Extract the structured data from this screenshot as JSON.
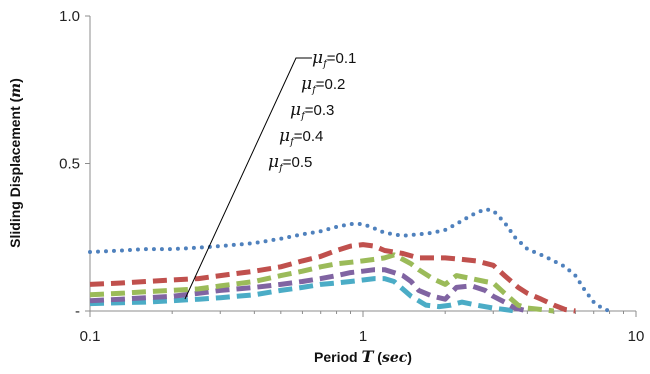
{
  "chart_data": {
    "type": "line",
    "title": "",
    "xlabel_prefix": "Period ",
    "xlabel_var": "T",
    "xlabel_unit_open": " (",
    "xlabel_unit": "sec",
    "xlabel_unit_close": ")",
    "ylabel_prefix": "Sliding Displacement (",
    "ylabel_var": "m",
    "ylabel_suffix": ")",
    "x_scale": "log",
    "xlim": [
      0.1,
      10
    ],
    "ylim": [
      0,
      1.0
    ],
    "x_ticks": [
      {
        "value": 0.1,
        "label": "0.1"
      },
      {
        "value": 1,
        "label": "1"
      },
      {
        "value": 10,
        "label": "10"
      }
    ],
    "y_ticks": [
      {
        "value": 0,
        "label": "-"
      },
      {
        "value": 0.5,
        "label": "0.5"
      },
      {
        "value": 1.0,
        "label": "1.0"
      }
    ],
    "grid": false,
    "legend_placement": "top-center",
    "legend_symbol": "μ",
    "legend_subscript": "f",
    "series": [
      {
        "name": "=0.1",
        "color": "#4f81bd",
        "style": "dotted",
        "x": [
          0.1,
          0.13,
          0.16,
          0.2,
          0.25,
          0.3,
          0.4,
          0.5,
          0.6,
          0.7,
          0.8,
          0.9,
          1.0,
          1.1,
          1.2,
          1.4,
          1.6,
          1.8,
          2.0,
          2.2,
          2.5,
          2.8,
          3.0,
          3.3,
          3.6,
          4.0,
          4.5,
          5.0,
          5.5,
          6.0,
          6.5,
          7.0,
          7.5,
          8.0
        ],
        "y": [
          0.2,
          0.205,
          0.21,
          0.21,
          0.215,
          0.22,
          0.23,
          0.245,
          0.26,
          0.27,
          0.285,
          0.295,
          0.295,
          0.28,
          0.265,
          0.255,
          0.26,
          0.265,
          0.275,
          0.295,
          0.325,
          0.345,
          0.34,
          0.3,
          0.25,
          0.21,
          0.19,
          0.17,
          0.15,
          0.12,
          0.07,
          0.03,
          0.01,
          0.0
        ]
      },
      {
        "name": "=0.2",
        "color": "#c0504d",
        "style": "dashed",
        "x": [
          0.1,
          0.13,
          0.16,
          0.2,
          0.25,
          0.3,
          0.4,
          0.5,
          0.6,
          0.7,
          0.8,
          0.9,
          1.0,
          1.1,
          1.2,
          1.4,
          1.6,
          1.8,
          2.0,
          2.3,
          2.6,
          3.0,
          3.3,
          3.7,
          4.0,
          4.5,
          5.0,
          5.5,
          6.0
        ],
        "y": [
          0.09,
          0.095,
          0.1,
          0.105,
          0.11,
          0.12,
          0.135,
          0.15,
          0.17,
          0.185,
          0.205,
          0.22,
          0.225,
          0.22,
          0.205,
          0.195,
          0.18,
          0.18,
          0.18,
          0.175,
          0.17,
          0.155,
          0.12,
          0.08,
          0.06,
          0.04,
          0.02,
          0.005,
          0.0
        ]
      },
      {
        "name": "=0.3",
        "color": "#9bbb59",
        "style": "dashed",
        "x": [
          0.1,
          0.13,
          0.16,
          0.2,
          0.25,
          0.3,
          0.4,
          0.5,
          0.6,
          0.7,
          0.8,
          0.9,
          1.0,
          1.1,
          1.2,
          1.3,
          1.4,
          1.5,
          1.6,
          1.8,
          2.0,
          2.2,
          2.5,
          2.8,
          3.0,
          3.3,
          3.7,
          4.0,
          4.5,
          5.0
        ],
        "y": [
          0.055,
          0.06,
          0.065,
          0.07,
          0.075,
          0.085,
          0.1,
          0.12,
          0.135,
          0.15,
          0.16,
          0.165,
          0.17,
          0.175,
          0.18,
          0.19,
          0.175,
          0.16,
          0.14,
          0.11,
          0.09,
          0.12,
          0.11,
          0.1,
          0.095,
          0.06,
          0.02,
          0.01,
          0.005,
          0.0
        ]
      },
      {
        "name": "=0.4",
        "color": "#8064a2",
        "style": "dashed",
        "x": [
          0.1,
          0.13,
          0.16,
          0.2,
          0.25,
          0.3,
          0.4,
          0.5,
          0.6,
          0.7,
          0.8,
          0.9,
          1.0,
          1.1,
          1.2,
          1.3,
          1.4,
          1.5,
          1.6,
          1.8,
          2.0,
          2.2,
          2.5,
          2.8,
          3.0,
          3.3,
          3.6,
          4.0
        ],
        "y": [
          0.035,
          0.04,
          0.045,
          0.05,
          0.06,
          0.07,
          0.08,
          0.09,
          0.1,
          0.11,
          0.12,
          0.13,
          0.135,
          0.14,
          0.14,
          0.13,
          0.12,
          0.1,
          0.07,
          0.05,
          0.04,
          0.08,
          0.085,
          0.07,
          0.05,
          0.03,
          0.01,
          0.0
        ]
      },
      {
        "name": "=0.5",
        "color": "#4bacc6",
        "style": "dashed",
        "x": [
          0.1,
          0.13,
          0.16,
          0.2,
          0.25,
          0.3,
          0.4,
          0.5,
          0.6,
          0.7,
          0.8,
          0.9,
          1.0,
          1.1,
          1.2,
          1.3,
          1.5,
          1.7,
          1.9,
          2.1,
          2.3,
          2.6,
          3.0,
          3.3,
          3.6
        ],
        "y": [
          0.025,
          0.028,
          0.03,
          0.035,
          0.04,
          0.045,
          0.055,
          0.07,
          0.08,
          0.09,
          0.095,
          0.1,
          0.105,
          0.11,
          0.11,
          0.1,
          0.05,
          0.02,
          0.015,
          0.02,
          0.03,
          0.02,
          0.01,
          0.005,
          0.0
        ]
      }
    ]
  }
}
